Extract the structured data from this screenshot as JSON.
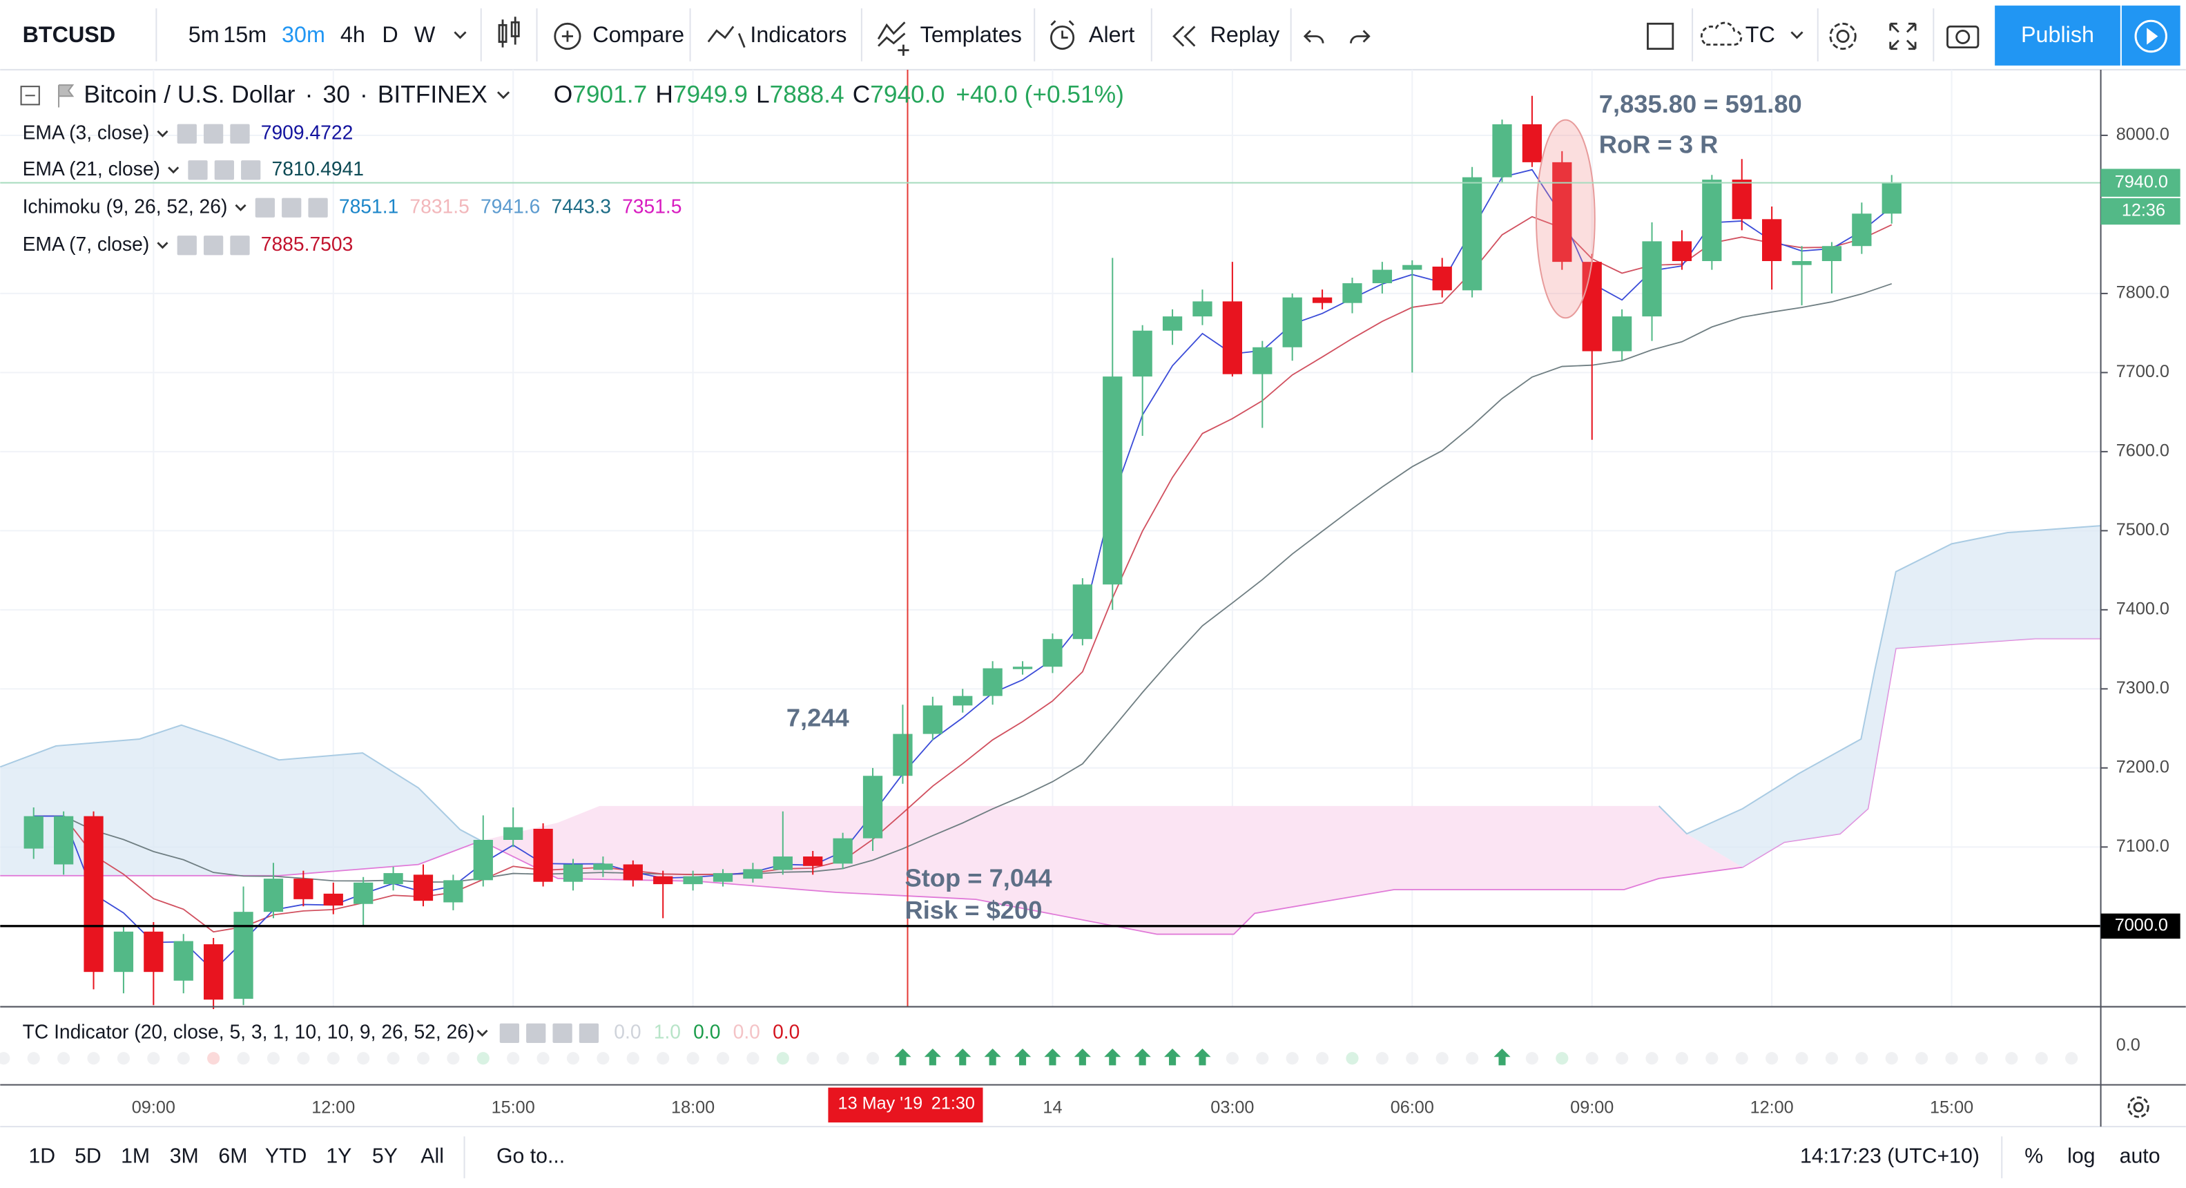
{
  "toolbar": {
    "symbol": "BTCUSD",
    "intervals": [
      "5m",
      "15m",
      "30m",
      "4h",
      "D",
      "W"
    ],
    "active_interval": "30m",
    "buttons": [
      "Compare",
      "Indicators",
      "Templates",
      "Alert",
      "Replay"
    ],
    "layout": "TC",
    "publish": "Publish"
  },
  "legend": {
    "symbol_name": "Bitcoin / U.S. Dollar",
    "interval": "30",
    "exchange": "BITFINEX",
    "open": "7901.7",
    "high": "7949.9",
    "low": "7888.4",
    "close": "7940.0",
    "change": "+40.0 (+0.51%)"
  },
  "indicators": [
    {
      "name": "EMA (3, close)",
      "values": [
        "7909.4722"
      ],
      "colors": [
        "#13139e"
      ]
    },
    {
      "name": "EMA (21, close)",
      "values": [
        "7810.4941"
      ],
      "colors": [
        "#0d4a55"
      ]
    },
    {
      "name": "Ichimoku (9, 26, 52, 26)",
      "values": [
        "7851.1",
        "7831.5",
        "7941.6",
        "7443.3",
        "7351.5"
      ],
      "colors": [
        "#1c86c9",
        "#f2b7bb",
        "#5c9bcf",
        "#1d6c86",
        "#d81bc0"
      ]
    },
    {
      "name": "EMA (7, close)",
      "values": [
        "7885.7503"
      ],
      "colors": [
        "#c2132e"
      ]
    }
  ],
  "chart_data": {
    "type": "candlestick",
    "up_color": "#53b987",
    "down_color": "#e8141f",
    "ylim": [
      6898,
      8083
    ],
    "yticks": [
      {
        "value": 7100,
        "label": "7100.0"
      },
      {
        "value": 7200,
        "label": "7200.0"
      },
      {
        "value": 7300,
        "label": "7300.0"
      },
      {
        "value": 7400,
        "label": "7400.0"
      },
      {
        "value": 7500,
        "label": "7500.0"
      },
      {
        "value": 7600,
        "label": "7600.0"
      },
      {
        "value": 7700,
        "label": "7700.0"
      },
      {
        "value": 7800,
        "label": "7800.0"
      },
      {
        "value": 8000,
        "label": "8000.0"
      }
    ],
    "xticks": [
      "09:00",
      "12:00",
      "15:00",
      "18:00",
      "14",
      "03:00",
      "06:00",
      "09:00",
      "12:00",
      "15:00"
    ],
    "crosshair": {
      "date": "13 May '19",
      "time": "21:30"
    },
    "hline": {
      "value": 7000,
      "label": "7000.0"
    },
    "last_price": {
      "value": 7940,
      "label": "7940.0",
      "countdown": "12:36"
    },
    "annotations": {
      "entry": "7,244",
      "stop": "Stop = 7,044",
      "risk": "Risk = $200",
      "target": "7,835.80 = 591.80",
      "ror": "RoR = 3 R"
    },
    "ohlc": [
      [
        7098,
        7150,
        7085,
        7139
      ],
      [
        7078,
        7145,
        7065,
        7139
      ],
      [
        7139,
        7145,
        6920,
        6942
      ],
      [
        6942,
        7000,
        6915,
        6993
      ],
      [
        6993,
        7005,
        6900,
        6942
      ],
      [
        6931,
        6990,
        6915,
        6981
      ],
      [
        6977,
        6985,
        6895,
        6907
      ],
      [
        6908,
        7050,
        6900,
        7018
      ],
      [
        7018,
        7080,
        7010,
        7060
      ],
      [
        7060,
        7070,
        7025,
        7034
      ],
      [
        7041,
        7055,
        7015,
        7026
      ],
      [
        7028,
        7062,
        7000,
        7055
      ],
      [
        7053,
        7075,
        7045,
        7067
      ],
      [
        7065,
        7078,
        7025,
        7032
      ],
      [
        7030,
        7065,
        7020,
        7058
      ],
      [
        7058,
        7140,
        7050,
        7109
      ],
      [
        7109,
        7150,
        7100,
        7125
      ],
      [
        7123,
        7130,
        7050,
        7056
      ],
      [
        7056,
        7085,
        7045,
        7078
      ],
      [
        7071,
        7088,
        7062,
        7079
      ],
      [
        7078,
        7083,
        7050,
        7058
      ],
      [
        7063,
        7070,
        7010,
        7053
      ],
      [
        7053,
        7070,
        7045,
        7063
      ],
      [
        7056,
        7072,
        7050,
        7067
      ],
      [
        7060,
        7080,
        7055,
        7072
      ],
      [
        7071,
        7145,
        7065,
        7088
      ],
      [
        7088,
        7095,
        7065,
        7076
      ],
      [
        7079,
        7118,
        7072,
        7111
      ],
      [
        7111,
        7200,
        7095,
        7190
      ],
      [
        7190,
        7280,
        7180,
        7243
      ],
      [
        7243,
        7290,
        7235,
        7279
      ],
      [
        7279,
        7300,
        7270,
        7291
      ],
      [
        7291,
        7335,
        7280,
        7326
      ],
      [
        7325,
        7335,
        7318,
        7328
      ],
      [
        7328,
        7370,
        7320,
        7363
      ],
      [
        7363,
        7440,
        7355,
        7432
      ],
      [
        7432,
        7845,
        7400,
        7695
      ],
      [
        7695,
        7760,
        7620,
        7753
      ],
      [
        7753,
        7780,
        7735,
        7771
      ],
      [
        7771,
        7805,
        7760,
        7790
      ],
      [
        7790,
        7840,
        7695,
        7698
      ],
      [
        7698,
        7740,
        7630,
        7732
      ],
      [
        7732,
        7800,
        7715,
        7795
      ],
      [
        7795,
        7805,
        7780,
        7788
      ],
      [
        7788,
        7820,
        7775,
        7813
      ],
      [
        7813,
        7840,
        7800,
        7830
      ],
      [
        7830,
        7842,
        7700,
        7836
      ],
      [
        7834,
        7845,
        7795,
        7804
      ],
      [
        7804,
        7960,
        7795,
        7947
      ],
      [
        7947,
        8020,
        7940,
        8014
      ],
      [
        8014,
        8050,
        7960,
        7966
      ],
      [
        7966,
        7980,
        7830,
        7840
      ],
      [
        7840,
        7850,
        7615,
        7727
      ],
      [
        7727,
        7780,
        7715,
        7771
      ],
      [
        7771,
        7890,
        7740,
        7866
      ],
      [
        7866,
        7880,
        7830,
        7841
      ],
      [
        7841,
        7950,
        7830,
        7944
      ],
      [
        7944,
        7970,
        7880,
        7894
      ],
      [
        7894,
        7910,
        7805,
        7841
      ],
      [
        7836,
        7860,
        7785,
        7841
      ],
      [
        7841,
        7865,
        7800,
        7860
      ],
      [
        7860,
        7915,
        7850,
        7901
      ],
      [
        7901,
        7949.9,
        7888.4,
        7940
      ]
    ]
  },
  "tc_indicator": {
    "name": "TC Indicator (20, close, 5, 3, 1, 10, 10, 9, 26, 52, 26)",
    "values": [
      "0.0",
      "1.0",
      "0.0",
      "0.0",
      "0.0"
    ],
    "colors": [
      "#cfd3da",
      "#b8e4c8",
      "#1a9c4a",
      "#f4c3c6",
      "#d4141f"
    ],
    "axis_label": "0.0"
  },
  "bottom_bar": {
    "ranges": [
      "1D",
      "5D",
      "1M",
      "3M",
      "6M",
      "YTD",
      "1Y",
      "5Y",
      "All"
    ],
    "goto": "Go to...",
    "clock": "14:17:23 (UTC+10)",
    "options": [
      "%",
      "log",
      "auto"
    ]
  }
}
